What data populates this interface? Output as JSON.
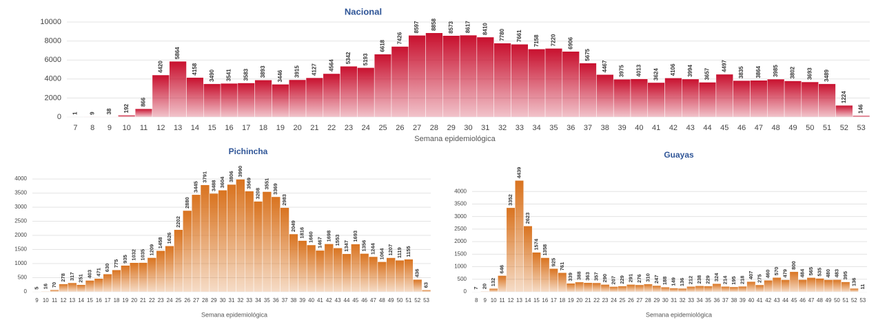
{
  "chart_data": [
    {
      "type": "bar",
      "title": "Nacional",
      "x_label": "Semana epidemiológica",
      "categories": [
        "7",
        "8",
        "9",
        "10",
        "11",
        "12",
        "13",
        "14",
        "15",
        "16",
        "17",
        "18",
        "19",
        "20",
        "21",
        "22",
        "23",
        "24",
        "25",
        "26",
        "27",
        "28",
        "29",
        "30",
        "31",
        "32",
        "33",
        "34",
        "35",
        "36",
        "37",
        "38",
        "39",
        "40",
        "41",
        "42",
        "43",
        "44",
        "45",
        "46",
        "47",
        "48",
        "49",
        "50",
        "51",
        "52",
        "53"
      ],
      "values": [
        1,
        9,
        38,
        192,
        866,
        4420,
        5864,
        4158,
        3490,
        3541,
        3583,
        3893,
        3446,
        3915,
        4127,
        4564,
        5342,
        5193,
        6618,
        7426,
        8597,
        8858,
        8573,
        8617,
        8410,
        7780,
        7661,
        7158,
        7220,
        6906,
        5675,
        4467,
        3975,
        4013,
        3624,
        4106,
        3994,
        3657,
        4497,
        3835,
        3864,
        3985,
        3802,
        3693,
        3489,
        1224,
        146
      ],
      "color": "#c8102e",
      "ylim": [
        0,
        10000
      ],
      "yticks": [
        0,
        2000,
        4000,
        6000,
        8000,
        10000
      ],
      "grid": true
    },
    {
      "type": "bar",
      "title": "Pichincha",
      "x_label": "Semana epidemiológica",
      "categories": [
        "9",
        "10",
        "11",
        "12",
        "13",
        "14",
        "15",
        "16",
        "17",
        "18",
        "19",
        "20",
        "21",
        "22",
        "23",
        "24",
        "25",
        "26",
        "27",
        "28",
        "29",
        "30",
        "31",
        "32",
        "33",
        "34",
        "35",
        "36",
        "37",
        "38",
        "39",
        "40",
        "41",
        "42",
        "43",
        "44",
        "45",
        "46",
        "47",
        "48",
        "49",
        "50",
        "51",
        "52",
        "53"
      ],
      "values": [
        5,
        16,
        70,
        278,
        317,
        251,
        403,
        471,
        630,
        775,
        935,
        1032,
        1035,
        1209,
        1458,
        1626,
        2202,
        2880,
        3445,
        3791,
        3488,
        3604,
        3806,
        3990,
        3569,
        3208,
        3551,
        3369,
        2983,
        2049,
        1816,
        1660,
        1467,
        1698,
        1553,
        1347,
        1693,
        1356,
        1244,
        1064,
        1207,
        1119,
        1155,
        436,
        63
      ],
      "color": "#d9731f",
      "ylim": [
        0,
        4100
      ],
      "yticks": [
        0,
        500,
        1000,
        1500,
        2000,
        2500,
        3000,
        3500,
        4000
      ],
      "grid": true
    },
    {
      "type": "bar",
      "title": "Guayas",
      "x_label": "Semana epidemiológica",
      "categories": [
        "8",
        "9",
        "10",
        "11",
        "12",
        "13",
        "14",
        "15",
        "16",
        "17",
        "18",
        "19",
        "20",
        "21",
        "22",
        "23",
        "24",
        "25",
        "26",
        "27",
        "28",
        "29",
        "30",
        "31",
        "32",
        "33",
        "34",
        "35",
        "36",
        "37",
        "38",
        "39",
        "40",
        "41",
        "42",
        "43",
        "44",
        "45",
        "46",
        "47",
        "48",
        "49",
        "50",
        "51",
        "52",
        "53"
      ],
      "values": [
        7,
        20,
        132,
        646,
        3352,
        4439,
        2623,
        1574,
        1358,
        925,
        761,
        339,
        388,
        363,
        357,
        290,
        207,
        229,
        291,
        276,
        310,
        247,
        188,
        149,
        136,
        212,
        238,
        229,
        324,
        214,
        195,
        218,
        407,
        275,
        460,
        570,
        479,
        800,
        484,
        565,
        535,
        480,
        483,
        395,
        136,
        11
      ],
      "color": "#d9731f",
      "ylim": [
        0,
        4500
      ],
      "yticks": [
        0,
        500,
        1000,
        1500,
        2000,
        2500,
        3000,
        3500,
        4000
      ],
      "grid": true
    }
  ]
}
